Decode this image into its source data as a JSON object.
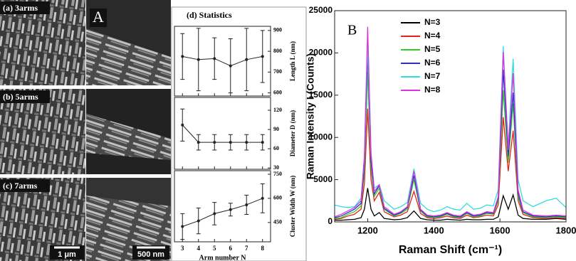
{
  "figure_a": {
    "panel_label": "A",
    "rows": [
      "(a) 3arms",
      "(b) 5arms",
      "(c) 7arms"
    ],
    "scale_bars": [
      "1 μm",
      "500 nm"
    ]
  },
  "chart_data": [
    {
      "type": "errorbar",
      "title": "(d) Statistics",
      "ylabel": "Length L (nm)",
      "x": [
        3,
        4,
        5,
        6,
        7,
        8
      ],
      "values": [
        775,
        760,
        765,
        730,
        760,
        775
      ],
      "errors": [
        110,
        150,
        100,
        130,
        150,
        125
      ],
      "xlim": [
        2.5,
        8.5
      ],
      "xticks": [
        3,
        4,
        5,
        6,
        7,
        8
      ],
      "ylim": [
        585,
        920
      ],
      "yticks": [
        600,
        700,
        800,
        900
      ],
      "color": "#222222"
    },
    {
      "type": "errorbar",
      "ylabel": "Diameter D (nm)",
      "x": [
        3,
        4,
        5,
        6,
        7,
        8
      ],
      "values": [
        97,
        70,
        70,
        70,
        70,
        70
      ],
      "errors": [
        25,
        12,
        12,
        12,
        12,
        12
      ],
      "xlim": [
        2.5,
        8.5
      ],
      "xticks": [
        3,
        4,
        5,
        6,
        7,
        8
      ],
      "ylim": [
        28,
        140
      ],
      "yticks": [
        30,
        60,
        90,
        120
      ],
      "color": "#222222"
    },
    {
      "type": "errorbar",
      "ylabel": "Cluster Width W (nm)",
      "xlabel": "Arm number N",
      "x": [
        3,
        4,
        5,
        6,
        7,
        8
      ],
      "values": [
        425,
        460,
        505,
        530,
        560,
        600
      ],
      "errors": [
        80,
        80,
        70,
        40,
        60,
        90
      ],
      "xlim": [
        2.5,
        8.5
      ],
      "xticks": [
        3,
        4,
        5,
        6,
        7,
        8
      ],
      "ylim": [
        330,
        772
      ],
      "yticks": [
        450,
        600,
        750
      ],
      "color": "#222222"
    },
    {
      "type": "line",
      "annotation": "B",
      "xlabel": "Raman Shift (cm⁻¹)",
      "ylabel": "Raman Intensity I (Counts)",
      "x": [
        1100,
        1120,
        1140,
        1160,
        1180,
        1190,
        1200,
        1210,
        1220,
        1235,
        1250,
        1280,
        1300,
        1320,
        1340,
        1360,
        1380,
        1400,
        1420,
        1440,
        1460,
        1480,
        1500,
        1520,
        1540,
        1560,
        1580,
        1595,
        1610,
        1625,
        1640,
        1655,
        1670,
        1700,
        1740,
        1770,
        1800
      ],
      "xlim": [
        1100,
        1800
      ],
      "xticks": [
        1200,
        1400,
        1600,
        1800
      ],
      "ylim": [
        0,
        25000
      ],
      "yticks": [
        0,
        5000,
        10000,
        15000,
        20000,
        25000
      ],
      "series": [
        {
          "name": "N=3",
          "color": "#000000",
          "values": [
            200,
            200,
            250,
            300,
            500,
            1500,
            4000,
            1500,
            700,
            1100,
            400,
            250,
            300,
            500,
            1300,
            400,
            250,
            200,
            200,
            300,
            250,
            200,
            300,
            250,
            250,
            300,
            300,
            600,
            3100,
            1500,
            3200,
            800,
            400,
            300,
            300,
            400,
            300
          ]
        },
        {
          "name": "N=4",
          "color": "#e8201c",
          "values": [
            300,
            400,
            700,
            900,
            1500,
            4500,
            13400,
            5000,
            2500,
            3500,
            1200,
            600,
            800,
            1200,
            3600,
            1000,
            500,
            400,
            500,
            700,
            500,
            400,
            800,
            500,
            600,
            800,
            700,
            2000,
            12400,
            6000,
            10800,
            2500,
            900,
            500,
            400,
            500,
            400
          ]
        },
        {
          "name": "N=5",
          "color": "#33cc22",
          "values": [
            400,
            500,
            900,
            1200,
            1900,
            6000,
            17800,
            6500,
            3000,
            4000,
            1500,
            700,
            1000,
            1500,
            5000,
            1300,
            600,
            500,
            600,
            900,
            600,
            500,
            1000,
            600,
            700,
            1000,
            900,
            2500,
            15600,
            7000,
            14000,
            3000,
            1100,
            600,
            500,
            600,
            500
          ]
        },
        {
          "name": "N=6",
          "color": "#2233cc",
          "values": [
            500,
            700,
            1100,
            1500,
            2200,
            6800,
            20000,
            7200,
            3300,
            4300,
            1600,
            800,
            1100,
            1700,
            5500,
            1400,
            700,
            600,
            700,
            1000,
            700,
            600,
            1100,
            700,
            800,
            1100,
            1000,
            2800,
            18000,
            7800,
            15300,
            3400,
            1200,
            700,
            600,
            700,
            600
          ]
        },
        {
          "name": "N=7",
          "color": "#33dddd",
          "values": [
            2000,
            1800,
            1700,
            1800,
            2800,
            7500,
            21000,
            8000,
            4000,
            4400,
            2500,
            1500,
            1800,
            2300,
            6300,
            2200,
            1500,
            1200,
            1400,
            1800,
            1500,
            1400,
            2200,
            1500,
            1600,
            2000,
            1900,
            3800,
            20800,
            9000,
            19300,
            5000,
            2500,
            1800,
            2500,
            2800,
            1700
          ]
        },
        {
          "name": "N=8",
          "color": "#dd33dd",
          "values": [
            600,
            900,
            1300,
            1700,
            2500,
            7800,
            23100,
            8200,
            3600,
            4400,
            1800,
            900,
            1200,
            1800,
            6000,
            1500,
            800,
            700,
            800,
            1100,
            800,
            700,
            1200,
            800,
            900,
            1200,
            1100,
            3000,
            20100,
            8500,
            17600,
            3800,
            1400,
            800,
            700,
            800,
            700
          ]
        }
      ]
    }
  ]
}
